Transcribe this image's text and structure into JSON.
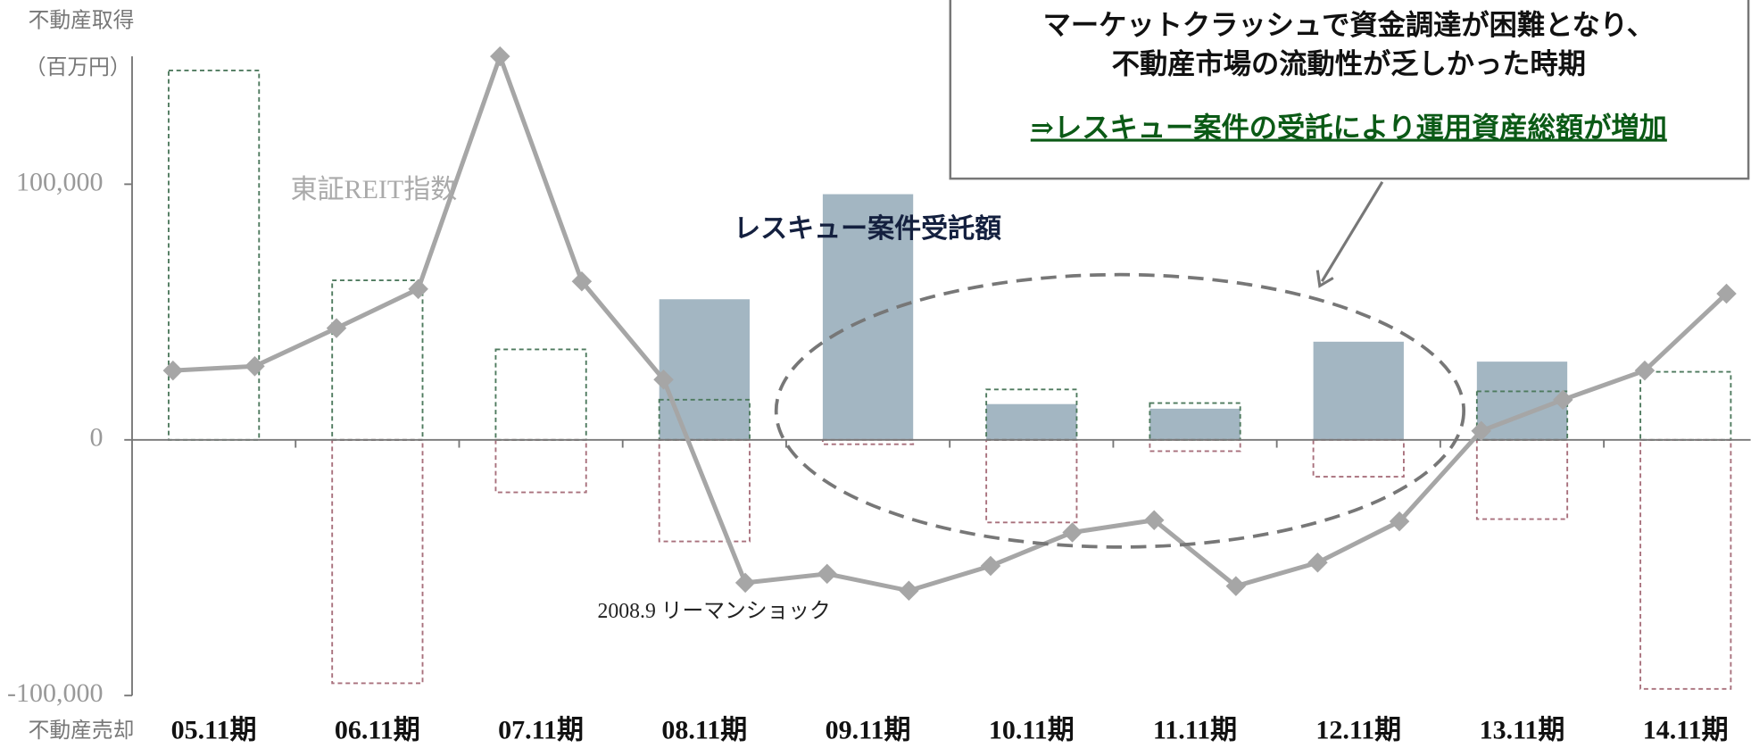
{
  "chart_data": {
    "type": "bar",
    "ylabel_top": "不動産取得",
    "ylabel_unit": "（百万円）",
    "ylabel_bottom": "不動産売却",
    "categories": [
      "05.11期",
      "06.11期",
      "07.11期",
      "08.11期",
      "09.11期",
      "10.11期",
      "11.11期",
      "12.11期",
      "13.11期",
      "14.11期"
    ],
    "series": [
      {
        "name": "レスキュー案件受託額",
        "color": "#a3b6c2",
        "style": "filled",
        "values": [
          null,
          null,
          null,
          55000,
          96100,
          14000,
          12200,
          38400,
          30600,
          null
        ]
      },
      {
        "color": "#4e7a5e",
        "style": "dashed",
        "values": [
          144500,
          62400,
          35400,
          15700,
          null,
          19700,
          14400,
          null,
          19000,
          26600
        ]
      },
      {
        "color": "#a8707c",
        "style": "dashed",
        "values": [
          null,
          -95200,
          -20500,
          -39700,
          -1700,
          -32300,
          -4400,
          -14400,
          -31000,
          -97400
        ]
      }
    ],
    "line_series": {
      "name": "東証REIT指数",
      "color": "#a6a6a6",
      "values": [
        27100,
        28800,
        43700,
        59000,
        150000,
        62000,
        23600,
        -55900,
        -52400,
        -59000,
        -49300,
        -36200,
        -31400,
        -57200,
        -48000,
        -31900,
        3500,
        15700,
        27100,
        57200
      ]
    },
    "ylim": [
      -100000,
      150000
    ],
    "yticks": [
      {
        "value": -100000,
        "label": "-100,000"
      },
      0,
      {
        "value": 100000,
        "label": "100,000"
      }
    ],
    "annotations": {
      "event": "2008.9 リーマンショック",
      "box_line1": "マーケットクラッシュで資金調達が困難となり、",
      "box_line2": "不動産市場の流動性が乏しかった時期",
      "box_line3": "⇒レスキュー案件の受託により運用資産総額が増加"
    }
  }
}
